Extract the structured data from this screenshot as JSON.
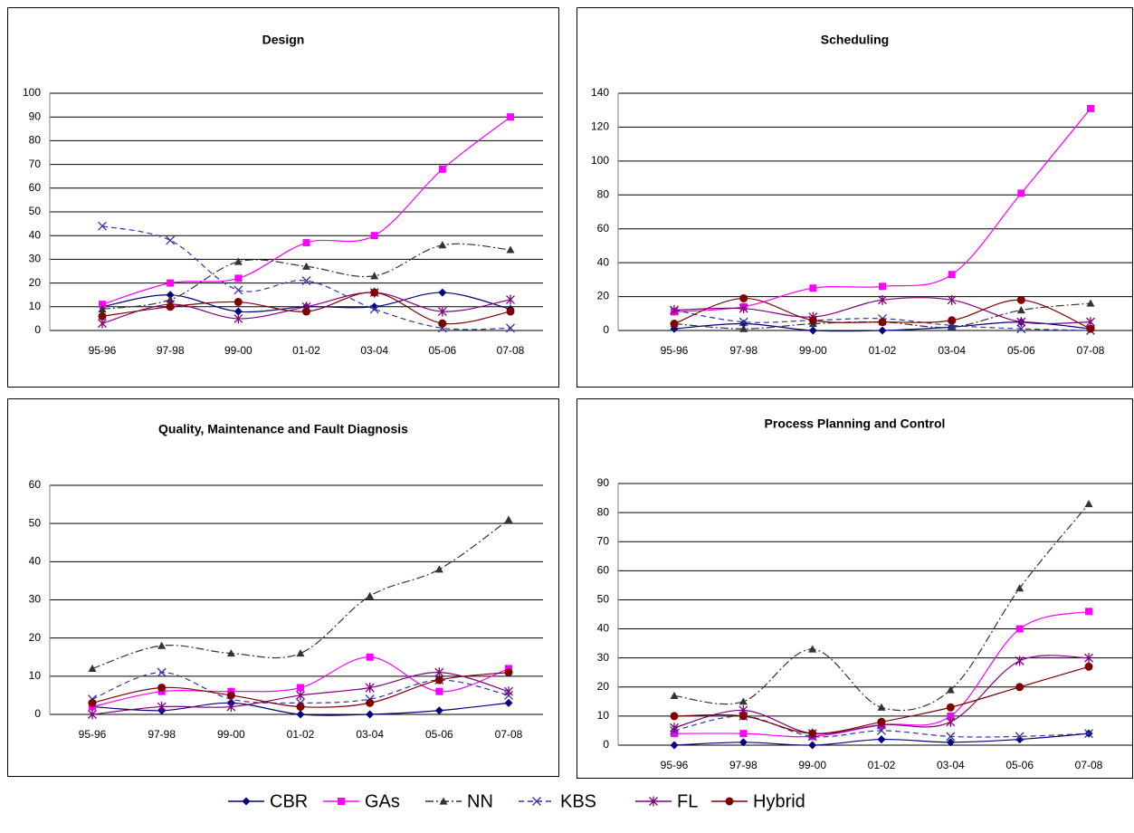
{
  "legend": {
    "series": [
      {
        "name": "CBR",
        "color": "#000080",
        "marker": "diamond",
        "dash": "solid"
      },
      {
        "name": "GAs",
        "color": "#ff00ff",
        "marker": "square",
        "dash": "solid"
      },
      {
        "name": "NN",
        "color": "#333333",
        "marker": "triangle",
        "dash": "dashdot"
      },
      {
        "name": "KBS",
        "color": "#3333aa",
        "marker": "x",
        "dash": "dashed"
      },
      {
        "name": "FL",
        "color": "#800080",
        "marker": "star",
        "dash": "solid"
      },
      {
        "name": "Hybrid",
        "color": "#800000",
        "marker": "circle",
        "dash": "solid"
      }
    ]
  },
  "chart_data": [
    {
      "type": "line",
      "title": "Design",
      "categories": [
        "95-96",
        "97-98",
        "99-00",
        "01-02",
        "03-04",
        "05-06",
        "07-08"
      ],
      "series": [
        {
          "values": [
            10,
            15,
            8,
            10,
            10,
            16,
            9
          ]
        },
        {
          "values": [
            11,
            20,
            22,
            37,
            40,
            68,
            90
          ]
        },
        {
          "values": [
            9,
            13,
            29,
            27,
            23,
            36,
            34
          ]
        },
        {
          "values": [
            44,
            38,
            17,
            21,
            9,
            1,
            1
          ]
        },
        {
          "values": [
            3,
            11,
            5,
            10,
            16,
            8,
            13
          ]
        },
        {
          "values": [
            6,
            10,
            12,
            8,
            16,
            3,
            8
          ]
        }
      ],
      "ylim": [
        0,
        100
      ],
      "yticks": [
        0,
        10,
        20,
        30,
        40,
        50,
        60,
        70,
        80,
        90,
        100
      ],
      "grid": true
    },
    {
      "type": "line",
      "title": "Scheduling",
      "categories": [
        "95-96",
        "97-98",
        "99-00",
        "01-02",
        "03-04",
        "05-06",
        "07-08"
      ],
      "series": [
        {
          "values": [
            1,
            4,
            0,
            0,
            2,
            5,
            1
          ]
        },
        {
          "values": [
            11,
            14,
            25,
            26,
            33,
            81,
            131
          ]
        },
        {
          "values": [
            4,
            1,
            4,
            5,
            2,
            12,
            16
          ]
        },
        {
          "values": [
            12,
            5,
            6,
            7,
            3,
            1,
            0
          ]
        },
        {
          "values": [
            12,
            13,
            8,
            18,
            18,
            5,
            5
          ]
        },
        {
          "values": [
            4,
            19,
            6,
            5,
            6,
            18,
            1
          ]
        }
      ],
      "ylim": [
        0,
        140
      ],
      "yticks": [
        0,
        20,
        40,
        60,
        80,
        100,
        120,
        140
      ],
      "grid": true
    },
    {
      "type": "line",
      "title": "Quality, Maintenance and Fault Diagnosis",
      "categories": [
        "95-96",
        "97-98",
        "99-00",
        "01-02",
        "03-04",
        "05-06",
        "07-08"
      ],
      "series": [
        {
          "values": [
            2,
            1,
            3,
            0,
            0,
            1,
            3
          ]
        },
        {
          "values": [
            2,
            6,
            6,
            7,
            15,
            6,
            12
          ]
        },
        {
          "values": [
            12,
            18,
            16,
            16,
            31,
            38,
            51
          ]
        },
        {
          "values": [
            4,
            11,
            4,
            3,
            4,
            9,
            5
          ]
        },
        {
          "values": [
            0,
            2,
            2,
            5,
            7,
            11,
            6
          ]
        },
        {
          "values": [
            3,
            7,
            5,
            2,
            3,
            9,
            11
          ]
        }
      ],
      "ylim": [
        0,
        60
      ],
      "yticks": [
        0,
        10,
        20,
        30,
        40,
        50,
        60
      ],
      "grid": true
    },
    {
      "type": "line",
      "title": "Process Planning and Control",
      "categories": [
        "95-96",
        "97-98",
        "99-00",
        "01-02",
        "03-04",
        "05-06",
        "07-08"
      ],
      "series": [
        {
          "values": [
            0,
            1,
            0,
            2,
            1,
            2,
            4
          ]
        },
        {
          "values": [
            4,
            4,
            3,
            7,
            10,
            40,
            46
          ]
        },
        {
          "values": [
            17,
            15,
            33,
            13,
            19,
            54,
            83
          ]
        },
        {
          "values": [
            5,
            10,
            3,
            5,
            3,
            3,
            4
          ]
        },
        {
          "values": [
            6,
            12,
            4,
            7,
            8,
            29,
            30
          ]
        },
        {
          "values": [
            10,
            10,
            4,
            8,
            13,
            20,
            27
          ]
        }
      ],
      "ylim": [
        0,
        90
      ],
      "yticks": [
        0,
        10,
        20,
        30,
        40,
        50,
        60,
        70,
        80,
        90
      ],
      "grid": true
    }
  ]
}
